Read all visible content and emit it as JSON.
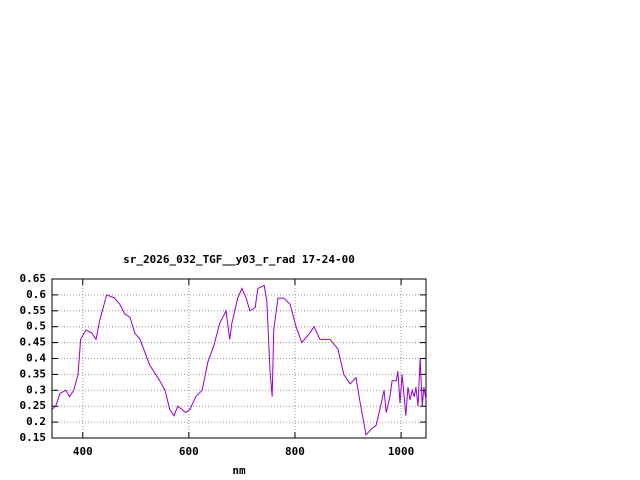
{
  "chart_data": {
    "type": "line",
    "title": "sr_2026_032_TGF__y03_r_rad 17-24-00",
    "x_label": "nm",
    "x": [
      342,
      349,
      357,
      368,
      375,
      383,
      391,
      396,
      406,
      417,
      425,
      432,
      445,
      460,
      470,
      479,
      489,
      498,
      508,
      526,
      545,
      555,
      564,
      572,
      579,
      587,
      594,
      602,
      613,
      625,
      636,
      647,
      658,
      670,
      677,
      681,
      692,
      700,
      708,
      715,
      725,
      730,
      742,
      747,
      753,
      757,
      760,
      768,
      779,
      791,
      802,
      813,
      828,
      836,
      847,
      866,
      881,
      892,
      904,
      915,
      923,
      934,
      945,
      953,
      960,
      968,
      972,
      979,
      983,
      991,
      994,
      998,
      1002,
      1009,
      1013,
      1017,
      1021,
      1025,
      1028,
      1032,
      1036,
      1040,
      1043,
      1047
    ],
    "series": [
      {
        "color": "#9400d3",
        "values": [
          0.24,
          0.25,
          0.29,
          0.3,
          0.28,
          0.3,
          0.35,
          0.46,
          0.49,
          0.48,
          0.46,
          0.52,
          0.6,
          0.59,
          0.57,
          0.54,
          0.53,
          0.48,
          0.46,
          0.38,
          0.33,
          0.3,
          0.24,
          0.22,
          0.25,
          0.24,
          0.23,
          0.24,
          0.28,
          0.3,
          0.39,
          0.44,
          0.51,
          0.55,
          0.46,
          0.51,
          0.59,
          0.62,
          0.59,
          0.55,
          0.56,
          0.62,
          0.63,
          0.58,
          0.36,
          0.28,
          0.49,
          0.59,
          0.59,
          0.57,
          0.5,
          0.45,
          0.48,
          0.5,
          0.46,
          0.46,
          0.43,
          0.35,
          0.32,
          0.34,
          0.26,
          0.16,
          0.18,
          0.19,
          0.24,
          0.3,
          0.23,
          0.28,
          0.33,
          0.33,
          0.36,
          0.26,
          0.35,
          0.22,
          0.31,
          0.27,
          0.3,
          0.28,
          0.31,
          0.25,
          0.4,
          0.25,
          0.31,
          0.27
        ]
      }
    ],
    "xlim": [
      342,
      1047
    ],
    "xticks": [
      400,
      600,
      800,
      1000
    ],
    "ylim": [
      0.15,
      0.65
    ],
    "yticks": [
      0.15,
      0.2,
      0.25,
      0.3,
      0.35,
      0.4,
      0.45,
      0.5,
      0.55,
      0.6,
      0.65
    ],
    "grid": true
  }
}
